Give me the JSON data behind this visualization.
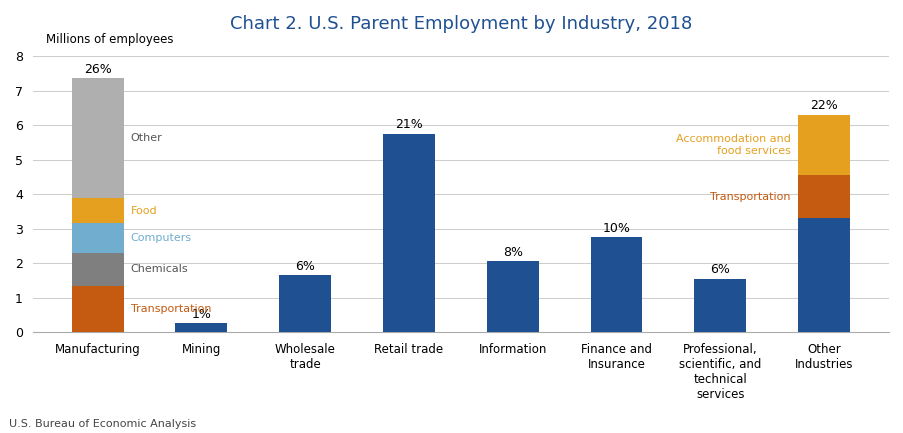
{
  "title": "Chart 2. U.S. Parent Employment by Industry, 2018",
  "ylabel": "Millions of employees",
  "source": "U.S. Bureau of Economic Analysis",
  "ylim": [
    0,
    8.3
  ],
  "yticks": [
    0,
    1,
    2,
    3,
    4,
    5,
    6,
    7,
    8
  ],
  "categories": [
    "Manufacturing",
    "Mining",
    "Wholesale\ntrade",
    "Retail trade",
    "Information",
    "Finance and\nInsurance",
    "Professional,\nscientific, and\ntechnical\nservices",
    "Other\nIndustries"
  ],
  "pct_labels": [
    "26%",
    "1%",
    "6%",
    "21%",
    "8%",
    "10%",
    "6%",
    "22%"
  ],
  "segments_mfg": {
    "Transportation": 1.35,
    "Chemicals": 0.95,
    "Computers": 0.85,
    "Food": 0.75,
    "Other": 3.45
  },
  "segments_simple": {
    "Mining": 0.27,
    "Wholesale\ntrade": 1.65,
    "Retail trade": 5.75,
    "Information": 2.05,
    "Finance and\nInsurance": 2.75,
    "Professional,\nscientific, and\ntechnical\nservices": 1.55
  },
  "segments_other": {
    "base": 3.3,
    "Transportation": 1.25,
    "Accommodation": 1.75
  },
  "colors": {
    "Transportation_mfg": "#C55A11",
    "Chemicals": "#7F7F7F",
    "Computers": "#70ADCE",
    "Food": "#E5A020",
    "Other_mfg": "#AFAFAF",
    "base": "#1F5091",
    "Transportation_other": "#C55A11",
    "Accommodation": "#E5A020"
  },
  "label_colors": {
    "Transportation_mfg": "#C55A11",
    "Food": "#E5A020",
    "Computers": "#70ADCE",
    "Chemicals": "#555555",
    "Other": "#555555",
    "Accommodation": "#E5A020",
    "Transportation_other": "#C55A11"
  },
  "title_color": "#1F5091",
  "title_fontsize": 13,
  "bar_width": 0.5
}
